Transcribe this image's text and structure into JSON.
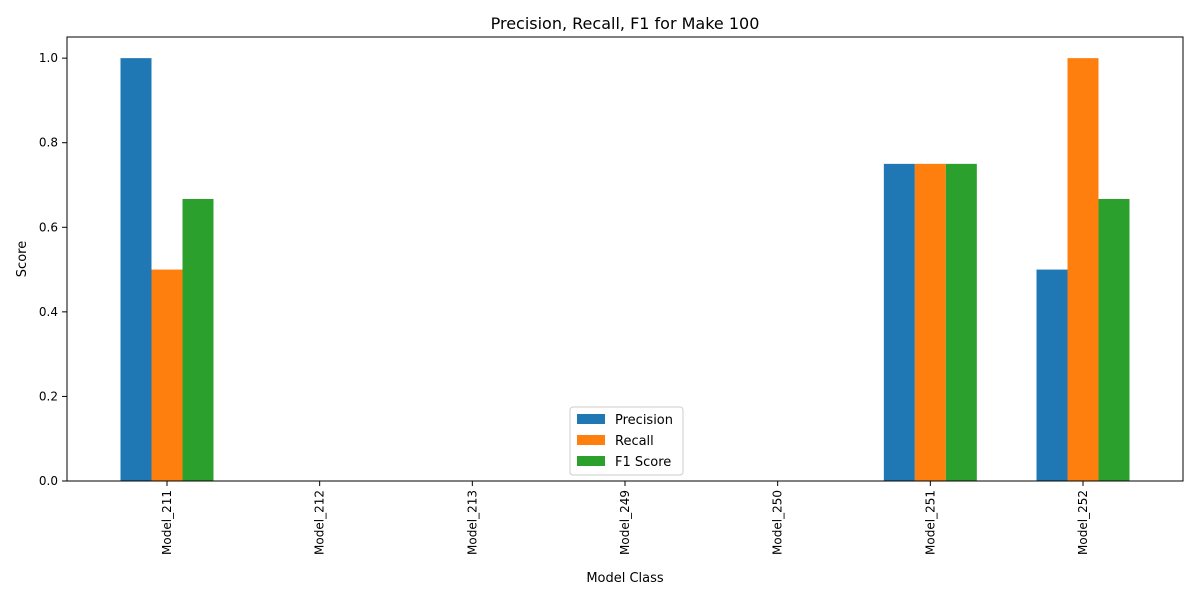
{
  "chart_data": {
    "type": "bar",
    "title": "Precision, Recall, F1 for Make 100",
    "xlabel": "Model Class",
    "ylabel": "Score",
    "categories": [
      "Model_211",
      "Model_212",
      "Model_213",
      "Model_249",
      "Model_250",
      "Model_251",
      "Model_252"
    ],
    "series": [
      {
        "name": "Precision",
        "color": "#1f77b4",
        "values": [
          1.0,
          0.0,
          0.0,
          0.0,
          0.0,
          0.75,
          0.5
        ]
      },
      {
        "name": "Recall",
        "color": "#ff7f0e",
        "values": [
          0.5,
          0.0,
          0.0,
          0.0,
          0.0,
          0.75,
          1.0
        ]
      },
      {
        "name": "F1 Score",
        "color": "#2ca02c",
        "values": [
          0.667,
          0.0,
          0.0,
          0.0,
          0.0,
          0.75,
          0.667
        ]
      }
    ],
    "ylim": [
      0,
      1.05
    ],
    "yticks": [
      "0.0",
      "0.2",
      "0.4",
      "0.6",
      "0.8",
      "1.0"
    ],
    "grid": false,
    "legend_position": "bottom-center"
  }
}
